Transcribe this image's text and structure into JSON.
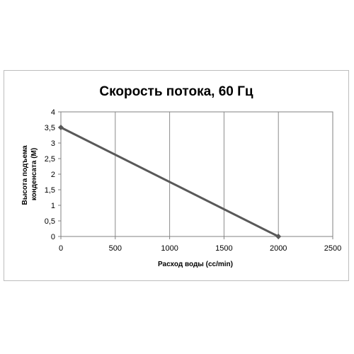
{
  "chart_data": {
    "type": "line",
    "title": "Скорость потока, 60 Гц",
    "xlabel": "Расход воды (cc/min)",
    "ylabel_lines": [
      "Высота подъема",
      "конденсата (M)"
    ],
    "xlim": [
      0,
      2500
    ],
    "ylim": [
      0,
      4
    ],
    "x_ticks": [
      0,
      500,
      1000,
      1500,
      2000,
      2500
    ],
    "x_tick_labels": [
      "0",
      "500",
      "1000",
      "1500",
      "2000",
      "2500"
    ],
    "y_ticks": [
      0,
      0.5,
      1,
      1.5,
      2,
      2.5,
      3,
      3.5,
      4
    ],
    "y_tick_labels": [
      "0",
      "0,5",
      "1",
      "1,5",
      "2",
      "2,5",
      "3",
      "3,5",
      "4"
    ],
    "grid": "vertical",
    "legend": "none",
    "series": [
      {
        "x": [
          0,
          2000
        ],
        "y": [
          3.5,
          0
        ],
        "color": "#595959",
        "marker": "diamond"
      }
    ]
  }
}
